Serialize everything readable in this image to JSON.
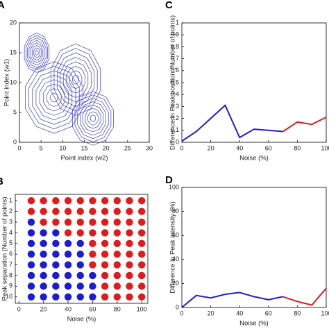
{
  "chart_data": [
    {
      "type": "contour",
      "panel_label": "A",
      "xlabel": "Point index (w2)",
      "ylabel": "Point index (w1)",
      "xlim": [
        0,
        30
      ],
      "ylim": [
        0,
        20
      ],
      "xticks": [
        0,
        5,
        10,
        15,
        20,
        25,
        30
      ],
      "yticks": [
        0,
        5,
        10,
        15,
        20
      ],
      "color": "#3a3ad0",
      "levels": 8,
      "peaks": [
        {
          "x": 4,
          "y": 15,
          "rx": 3,
          "ry": 3.3
        },
        {
          "x": 8,
          "y": 7.5,
          "rx": 7,
          "ry": 6
        },
        {
          "x": 13,
          "y": 10.5,
          "rx": 6,
          "ry": 6
        },
        {
          "x": 17,
          "y": 4,
          "rx": 5,
          "ry": 4.5
        }
      ]
    },
    {
      "type": "dot_matrix",
      "panel_label": "B",
      "xlabel": "Noise (%)",
      "ylabel": "Peak separation (Number of points)",
      "x": [
        10,
        20,
        30,
        40,
        50,
        60,
        70,
        80,
        90,
        100
      ],
      "y": [
        1,
        2,
        3,
        4,
        5,
        6,
        7,
        8,
        9,
        10
      ],
      "xlim": [
        -3,
        105
      ],
      "ylim": [
        0.4,
        10.6
      ],
      "xticks": [
        0,
        20,
        40,
        60,
        80,
        100
      ],
      "yticks": [
        1,
        2,
        3,
        4,
        5,
        6,
        7,
        8,
        9,
        10
      ],
      "palette": {
        "blue": "#1c1cd6",
        "red": "#e31a1c"
      },
      "point_colors": [
        [
          "red",
          "red",
          "red",
          "red",
          "red",
          "red",
          "red",
          "red",
          "red",
          "red"
        ],
        [
          "red",
          "red",
          "red",
          "red",
          "red",
          "red",
          "red",
          "red",
          "red",
          "red"
        ],
        [
          "blue",
          "red",
          "red",
          "red",
          "red",
          "red",
          "red",
          "red",
          "red",
          "red"
        ],
        [
          "blue",
          "blue",
          "blue",
          "red",
          "red",
          "red",
          "red",
          "red",
          "red",
          "red"
        ],
        [
          "blue",
          "blue",
          "blue",
          "blue",
          "blue",
          "red",
          "red",
          "red",
          "red",
          "red"
        ],
        [
          "blue",
          "blue",
          "blue",
          "blue",
          "blue",
          "red",
          "red",
          "red",
          "red",
          "red"
        ],
        [
          "blue",
          "blue",
          "blue",
          "blue",
          "blue",
          "red",
          "red",
          "red",
          "red",
          "red"
        ],
        [
          "blue",
          "blue",
          "blue",
          "blue",
          "blue",
          "blue",
          "red",
          "red",
          "red",
          "red"
        ],
        [
          "blue",
          "blue",
          "blue",
          "blue",
          "blue",
          "blue",
          "red",
          "red",
          "red",
          "red"
        ],
        [
          "blue",
          "blue",
          "blue",
          "blue",
          "blue",
          "blue",
          "red",
          "red",
          "red",
          "red"
        ]
      ]
    },
    {
      "type": "line",
      "panel_label": "C",
      "xlabel": "Noise (%)",
      "ylabel": "Difference in Peak position (Number of points)",
      "x": [
        0,
        10,
        20,
        30,
        40,
        50,
        60,
        70,
        80,
        90,
        100
      ],
      "xlim": [
        0,
        100
      ],
      "ylim": [
        0,
        1
      ],
      "xticks": [
        0,
        20,
        40,
        60,
        80,
        100
      ],
      "yticks": [
        0,
        0.1,
        0.2,
        0.3,
        0.4,
        0.5,
        0.6,
        0.7,
        0.8,
        0.9,
        1
      ],
      "series": [
        {
          "color": "#1c1cd6",
          "values": [
            0.01,
            0.09,
            0.2,
            0.31,
            0.04,
            0.11,
            0.1,
            0.09,
            null,
            null,
            null
          ]
        },
        {
          "color": "#e31a1c",
          "values": [
            null,
            null,
            null,
            null,
            null,
            null,
            null,
            0.09,
            0.17,
            0.15,
            0.21
          ]
        }
      ]
    },
    {
      "type": "line",
      "panel_label": "D",
      "xlabel": "Noise (%)",
      "ylabel": "Difference in Peak intensity (%)",
      "x": [
        0,
        10,
        20,
        30,
        40,
        50,
        60,
        70,
        80,
        90,
        100
      ],
      "xlim": [
        0,
        100
      ],
      "ylim": [
        0,
        100
      ],
      "xticks": [
        0,
        20,
        40,
        60,
        80,
        100
      ],
      "yticks": [
        0,
        20,
        40,
        60,
        80,
        100
      ],
      "series": [
        {
          "color": "#1c1cd6",
          "values": [
            0,
            10,
            8,
            11,
            12.5,
            9,
            6.5,
            9,
            null,
            null,
            null
          ]
        },
        {
          "color": "#e31a1c",
          "values": [
            null,
            null,
            null,
            null,
            null,
            null,
            null,
            9,
            5,
            2,
            16
          ]
        }
      ]
    }
  ]
}
